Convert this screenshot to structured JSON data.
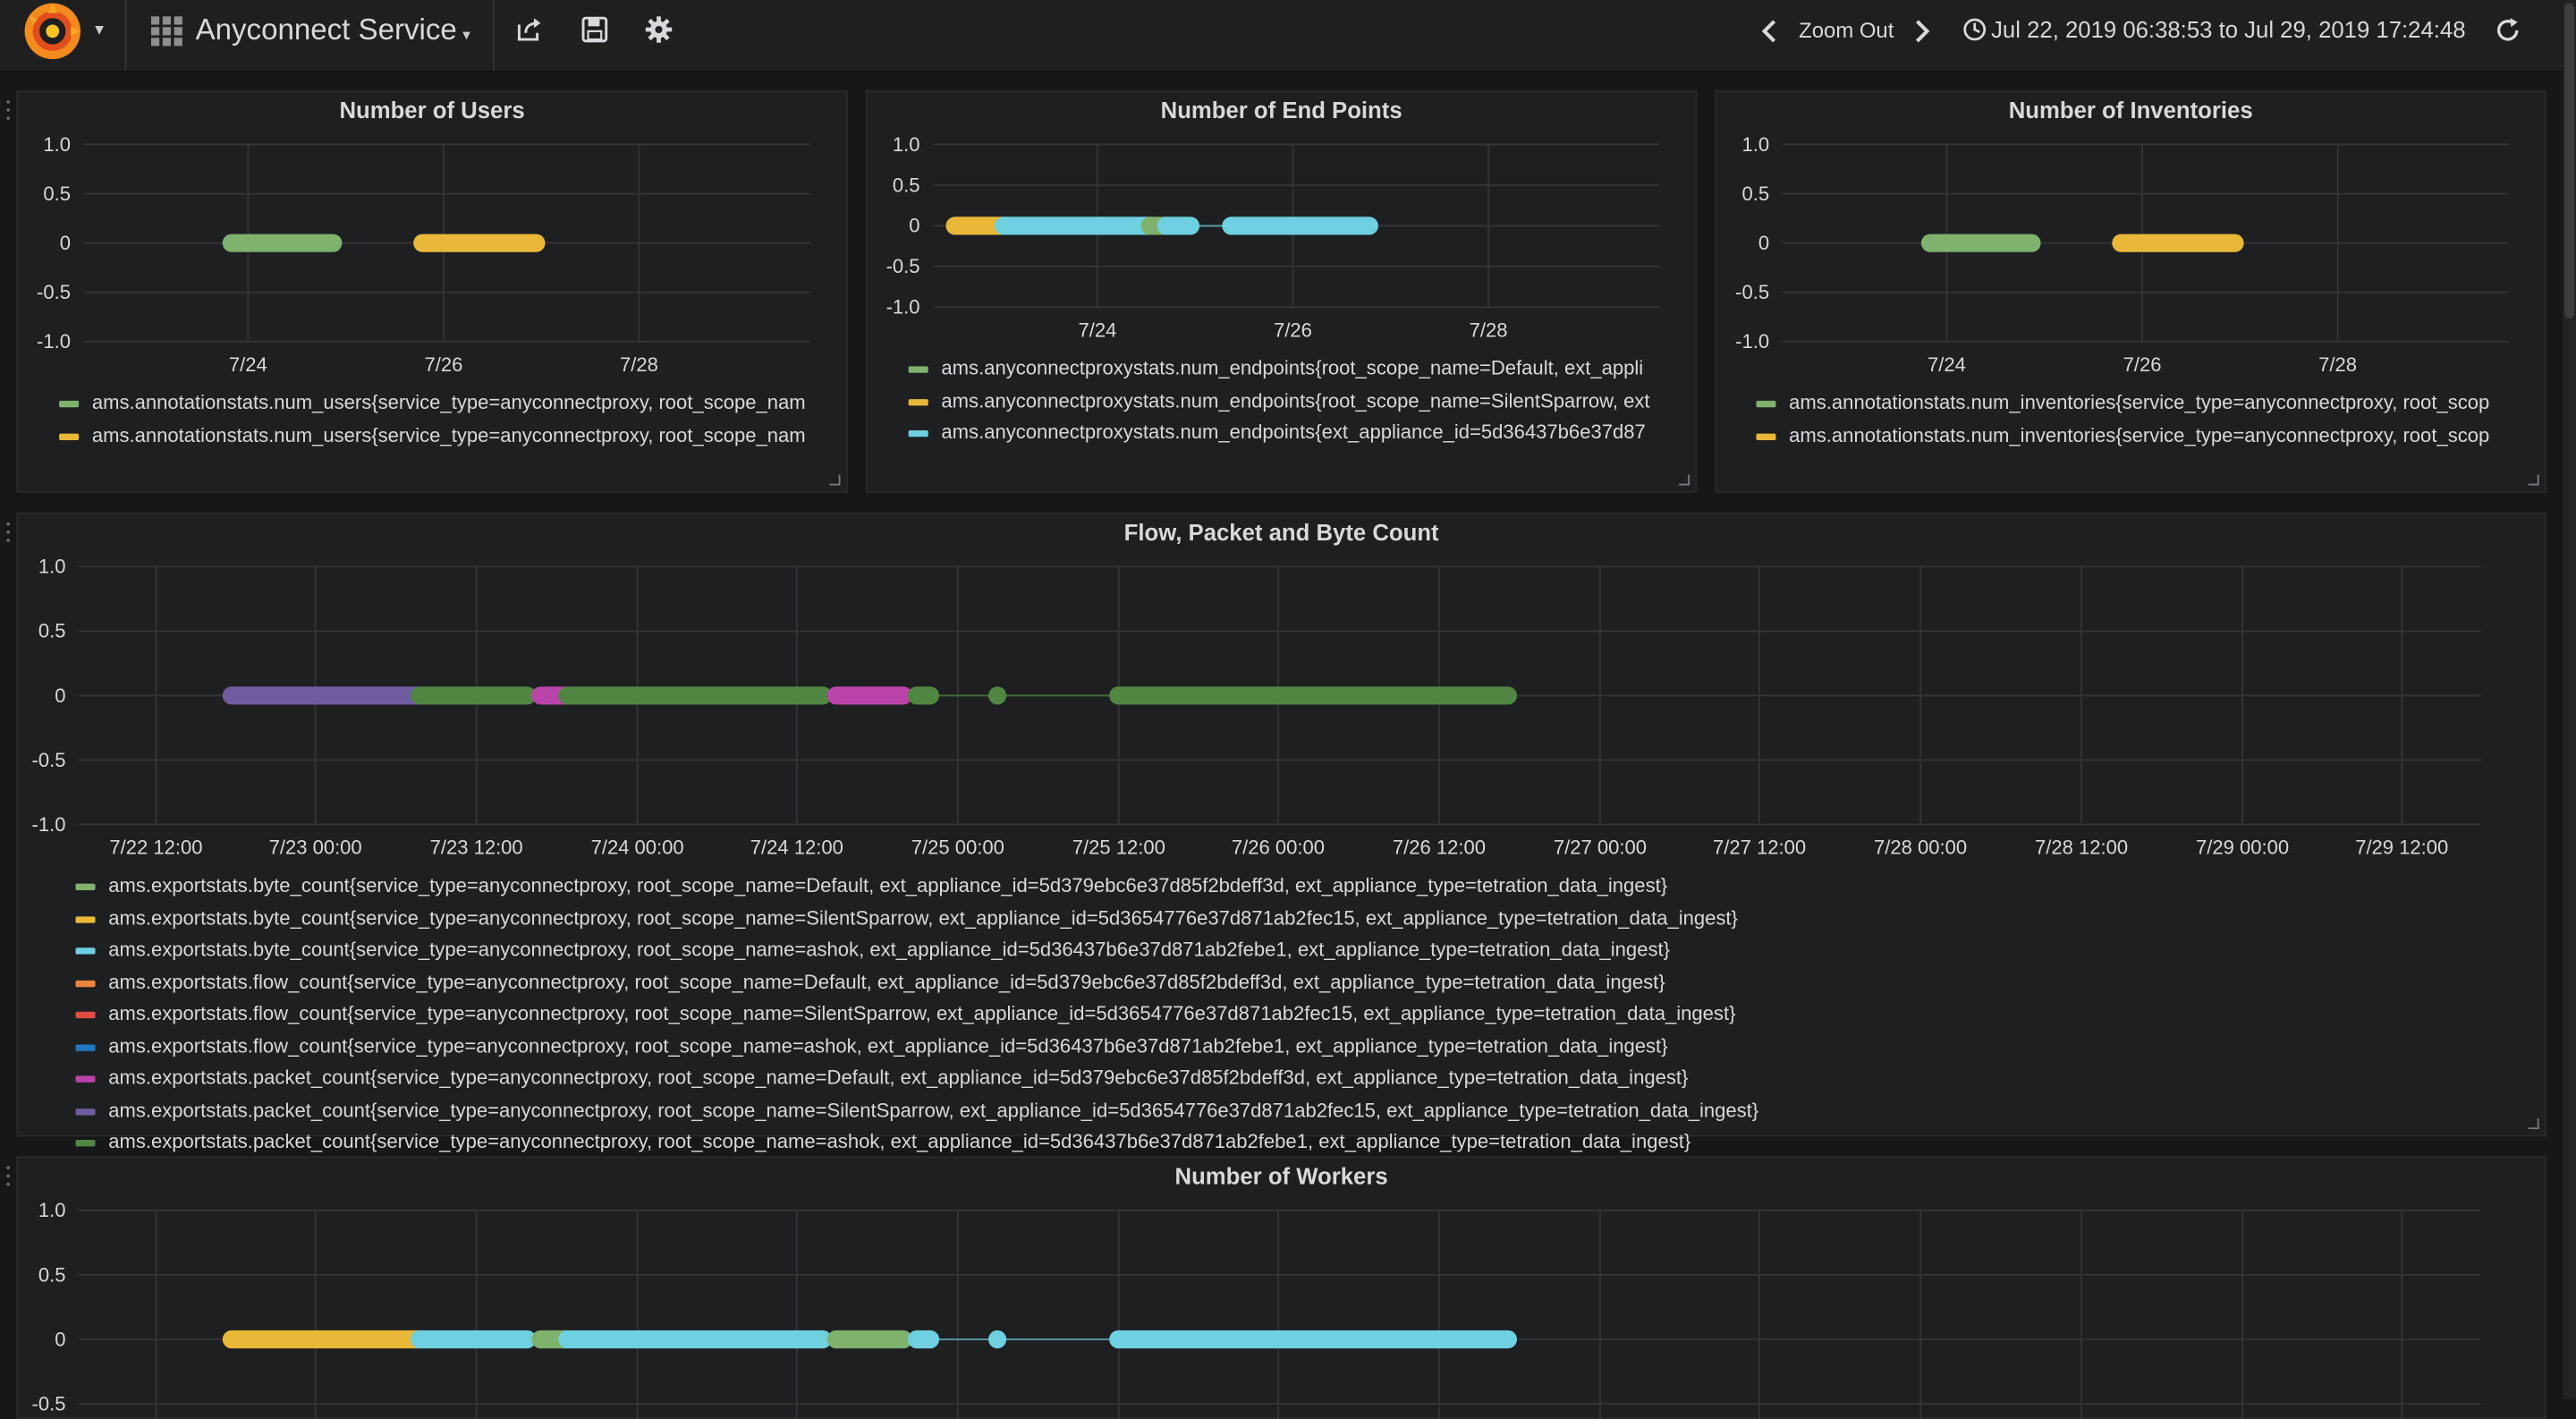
{
  "header": {
    "dashboard_title": "Anyconnect Service",
    "zoom_out_label": "Zoom Out",
    "time_range": "Jul 22, 2019 06:38:53 to Jul 29, 2019 17:24:48",
    "icons": [
      "grafana-logo-icon",
      "dashboard-grid-icon",
      "share-icon",
      "save-icon",
      "settings-gear-icon",
      "chevron-left-icon",
      "chevron-right-icon",
      "clock-icon",
      "refresh-icon"
    ]
  },
  "colors": {
    "green": "#7eb26d",
    "yellow": "#eab839",
    "light_blue": "#6ed0e0",
    "orange": "#ef843c",
    "red": "#e24d42",
    "blue": "#1f78c1",
    "pink": "#ba43a9",
    "purple": "#705da0",
    "dark_green": "#508642"
  },
  "panels": [
    {
      "title": "Number of Users",
      "legend": [
        {
          "label": "ams.annotationstats.num_users{service_type=anyconnectproxy, root_scope_nam",
          "color": "#7eb26d"
        },
        {
          "label": "ams.annotationstats.num_users{service_type=anyconnectproxy, root_scope_nam",
          "color": "#eab839"
        }
      ]
    },
    {
      "title": "Number of End Points",
      "legend": [
        {
          "label": "ams.anyconnectproxystats.num_endpoints{root_scope_name=Default, ext_appli",
          "color": "#7eb26d"
        },
        {
          "label": "ams.anyconnectproxystats.num_endpoints{root_scope_name=SilentSparrow, ext",
          "color": "#eab839"
        },
        {
          "label": "ams.anyconnectproxystats.num_endpoints{ext_appliance_id=5d36437b6e37d87",
          "color": "#6ed0e0"
        }
      ]
    },
    {
      "title": "Number of Inventories",
      "legend": [
        {
          "label": "ams.annotationstats.num_inventories{service_type=anyconnectproxy, root_scop",
          "color": "#7eb26d"
        },
        {
          "label": "ams.annotationstats.num_inventories{service_type=anyconnectproxy, root_scop",
          "color": "#eab839"
        }
      ]
    },
    {
      "title": "Flow, Packet and Byte Count",
      "legend": [
        {
          "label": "ams.exportstats.byte_count{service_type=anyconnectproxy, root_scope_name=Default, ext_appliance_id=5d379ebc6e37d85f2bdeff3d, ext_appliance_type=tetration_data_ingest}",
          "color": "#7eb26d"
        },
        {
          "label": "ams.exportstats.byte_count{service_type=anyconnectproxy, root_scope_name=SilentSparrow, ext_appliance_id=5d3654776e37d871ab2fec15, ext_appliance_type=tetration_data_ingest}",
          "color": "#eab839"
        },
        {
          "label": "ams.exportstats.byte_count{service_type=anyconnectproxy, root_scope_name=ashok, ext_appliance_id=5d36437b6e37d871ab2febe1, ext_appliance_type=tetration_data_ingest}",
          "color": "#6ed0e0"
        },
        {
          "label": "ams.exportstats.flow_count{service_type=anyconnectproxy, root_scope_name=Default, ext_appliance_id=5d379ebc6e37d85f2bdeff3d, ext_appliance_type=tetration_data_ingest}",
          "color": "#ef843c"
        },
        {
          "label": "ams.exportstats.flow_count{service_type=anyconnectproxy, root_scope_name=SilentSparrow, ext_appliance_id=5d3654776e37d871ab2fec15, ext_appliance_type=tetration_data_ingest}",
          "color": "#e24d42"
        },
        {
          "label": "ams.exportstats.flow_count{service_type=anyconnectproxy, root_scope_name=ashok, ext_appliance_id=5d36437b6e37d871ab2febe1, ext_appliance_type=tetration_data_ingest}",
          "color": "#1f78c1"
        },
        {
          "label": "ams.exportstats.packet_count{service_type=anyconnectproxy, root_scope_name=Default, ext_appliance_id=5d379ebc6e37d85f2bdeff3d, ext_appliance_type=tetration_data_ingest}",
          "color": "#ba43a9"
        },
        {
          "label": "ams.exportstats.packet_count{service_type=anyconnectproxy, root_scope_name=SilentSparrow, ext_appliance_id=5d3654776e37d871ab2fec15, ext_appliance_type=tetration_data_ingest}",
          "color": "#705da0"
        },
        {
          "label": "ams.exportstats.packet_count{service_type=anyconnectproxy, root_scope_name=ashok, ext_appliance_id=5d36437b6e37d871ab2febe1, ext_appliance_type=tetration_data_ingest}",
          "color": "#508642"
        }
      ]
    },
    {
      "title": "Number of Workers",
      "legend": []
    }
  ],
  "chart_data": [
    {
      "type": "scatter",
      "title": "Number of Users",
      "ylim": [
        -1,
        1
      ],
      "y_ticks": [
        "1.0",
        "0.5",
        "0",
        "-0.5",
        "-1.0"
      ],
      "x_ticks": [
        "7/24",
        "7/26",
        "7/28"
      ],
      "xlim": [
        "2019-07-22 06:38",
        "2019-07-29 17:24"
      ],
      "grid": true,
      "legend_placement": "bottom",
      "series": [
        {
          "color": "#7eb26d",
          "x": [
            "2019-07-23 19:00",
            "2019-07-24 20:00"
          ],
          "y": [
            0,
            0
          ]
        },
        {
          "color": "#eab839",
          "x": [
            "2019-07-25 18:00",
            "2019-07-26 22:00"
          ],
          "y": [
            0,
            0
          ]
        }
      ]
    },
    {
      "type": "scatter",
      "title": "Number of End Points",
      "ylim": [
        -1,
        1
      ],
      "y_ticks": [
        "1.0",
        "0.5",
        "0",
        "-0.5",
        "-1.0"
      ],
      "x_ticks": [
        "7/24",
        "7/26",
        "7/28"
      ],
      "xlim": [
        "2019-07-22 06:38",
        "2019-07-29 17:24"
      ],
      "grid": true,
      "legend_placement": "bottom",
      "series": [
        {
          "color": "#eab839",
          "x": [
            "2019-07-22 12:00",
            "2019-07-23 00:00"
          ],
          "y": [
            0,
            0
          ]
        },
        {
          "color": "#6ed0e0",
          "x": [
            "2019-07-23 00:00",
            "2019-07-24 12:00"
          ],
          "y": [
            0,
            0
          ]
        },
        {
          "color": "#7eb26d",
          "x": [
            "2019-07-24 12:00",
            "2019-07-24 16:00"
          ],
          "y": [
            0,
            0
          ]
        },
        {
          "color": "#6ed0e0",
          "x": [
            "2019-07-24 16:00",
            "2019-07-24 22:00"
          ],
          "y": [
            0,
            0
          ]
        },
        {
          "color": "#6ed0e0",
          "x": [
            "2019-07-25 08:00",
            "2019-07-26 18:00"
          ],
          "y": [
            0,
            0
          ]
        }
      ]
    },
    {
      "type": "scatter",
      "title": "Number of Inventories",
      "ylim": [
        -1,
        1
      ],
      "y_ticks": [
        "1.0",
        "0.5",
        "0",
        "-0.5",
        "-1.0"
      ],
      "x_ticks": [
        "7/24",
        "7/26",
        "7/28"
      ],
      "xlim": [
        "2019-07-22 06:38",
        "2019-07-29 17:24"
      ],
      "grid": true,
      "legend_placement": "bottom",
      "series": [
        {
          "color": "#7eb26d",
          "x": [
            "2019-07-23 19:00",
            "2019-07-24 20:00"
          ],
          "y": [
            0,
            0
          ]
        },
        {
          "color": "#eab839",
          "x": [
            "2019-07-25 18:00",
            "2019-07-26 22:00"
          ],
          "y": [
            0,
            0
          ]
        }
      ]
    },
    {
      "type": "scatter",
      "title": "Flow, Packet and Byte Count",
      "ylim": [
        -1,
        1
      ],
      "y_ticks": [
        "1.0",
        "0.5",
        "0",
        "-0.5",
        "-1.0"
      ],
      "x_ticks": [
        "7/22 12:00",
        "7/23 00:00",
        "7/23 12:00",
        "7/24 00:00",
        "7/24 12:00",
        "7/25 00:00",
        "7/25 12:00",
        "7/26 00:00",
        "7/26 12:00",
        "7/27 00:00",
        "7/27 12:00",
        "7/28 00:00",
        "7/28 12:00",
        "7/29 00:00",
        "7/29 12:00"
      ],
      "xlim": [
        "2019-07-22 06:38",
        "2019-07-29 17:24"
      ],
      "grid": true,
      "legend_placement": "bottom",
      "series": [
        {
          "color": "#705da0",
          "x": [
            "2019-07-22 18:00",
            "2019-07-23 08:00"
          ],
          "y": [
            0,
            0
          ]
        },
        {
          "color": "#508642",
          "x": [
            "2019-07-23 08:00",
            "2019-07-23 16:00"
          ],
          "y": [
            0,
            0
          ]
        },
        {
          "color": "#ba43a9",
          "x": [
            "2019-07-23 17:00",
            "2019-07-23 19:00"
          ],
          "y": [
            0,
            0
          ]
        },
        {
          "color": "#508642",
          "x": [
            "2019-07-23 19:00",
            "2019-07-24 14:00"
          ],
          "y": [
            0,
            0
          ]
        },
        {
          "color": "#ba43a9",
          "x": [
            "2019-07-24 15:00",
            "2019-07-24 20:00"
          ],
          "y": [
            0,
            0
          ]
        },
        {
          "color": "#508642",
          "x": [
            "2019-07-24 21:00",
            "2019-07-24 22:00"
          ],
          "y": [
            0,
            0
          ]
        },
        {
          "color": "#508642",
          "x": [
            "2019-07-25 03:00",
            "2019-07-25 03:00"
          ],
          "y": [
            0,
            0
          ]
        },
        {
          "color": "#508642",
          "x": [
            "2019-07-25 12:00",
            "2019-07-26 17:00"
          ],
          "y": [
            0,
            0
          ]
        }
      ]
    },
    {
      "type": "scatter",
      "title": "Number of Workers",
      "ylim": [
        -1,
        1
      ],
      "y_ticks": [
        "1.0",
        "0.5",
        "0",
        "-0.5"
      ],
      "x_ticks": [],
      "xlim": [
        "2019-07-22 06:38",
        "2019-07-29 17:24"
      ],
      "grid": true,
      "series": [
        {
          "color": "#eab839",
          "x": [
            "2019-07-22 18:00",
            "2019-07-23 08:00"
          ],
          "y": [
            0,
            0
          ]
        },
        {
          "color": "#6ed0e0",
          "x": [
            "2019-07-23 08:00",
            "2019-07-23 16:00"
          ],
          "y": [
            0,
            0
          ]
        },
        {
          "color": "#7eb26d",
          "x": [
            "2019-07-23 17:00",
            "2019-07-23 19:00"
          ],
          "y": [
            0,
            0
          ]
        },
        {
          "color": "#6ed0e0",
          "x": [
            "2019-07-23 19:00",
            "2019-07-24 14:00"
          ],
          "y": [
            0,
            0
          ]
        },
        {
          "color": "#7eb26d",
          "x": [
            "2019-07-24 15:00",
            "2019-07-24 20:00"
          ],
          "y": [
            0,
            0
          ]
        },
        {
          "color": "#6ed0e0",
          "x": [
            "2019-07-24 21:00",
            "2019-07-24 22:00"
          ],
          "y": [
            0,
            0
          ]
        },
        {
          "color": "#6ed0e0",
          "x": [
            "2019-07-25 03:00",
            "2019-07-25 03:00"
          ],
          "y": [
            0,
            0
          ]
        },
        {
          "color": "#6ed0e0",
          "x": [
            "2019-07-25 12:00",
            "2019-07-26 17:00"
          ],
          "y": [
            0,
            0
          ]
        }
      ]
    }
  ]
}
